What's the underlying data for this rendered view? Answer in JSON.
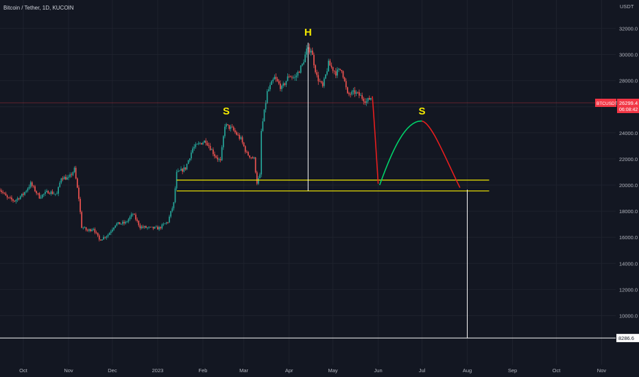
{
  "header": {
    "symbol_title": "Bitcoin / Tether, 1D, KUCOIN",
    "currency": "USDT"
  },
  "chart_data": {
    "type": "candlestick",
    "title": "Bitcoin / Tether, 1D, KUCOIN",
    "ylabel": "USDT",
    "ylim": [
      7200,
      33800
    ],
    "y_scale": "linear",
    "grid": true,
    "x_ticks": [
      {
        "label": "Oct",
        "date": "2022-10-01"
      },
      {
        "label": "Nov",
        "date": "2022-11-01"
      },
      {
        "label": "Dec",
        "date": "2022-12-01"
      },
      {
        "label": "2023",
        "date": "2023-01-01"
      },
      {
        "label": "Feb",
        "date": "2023-02-01"
      },
      {
        "label": "Mar",
        "date": "2023-03-01"
      },
      {
        "label": "Apr",
        "date": "2023-04-01"
      },
      {
        "label": "May",
        "date": "2023-05-01"
      },
      {
        "label": "Jun",
        "date": "2023-06-01"
      },
      {
        "label": "Jul",
        "date": "2023-07-01"
      },
      {
        "label": "Aug",
        "date": "2023-08-01"
      },
      {
        "label": "Sep",
        "date": "2023-09-01"
      },
      {
        "label": "Oct",
        "date": "2023-10-01"
      },
      {
        "label": "Nov",
        "date": "2023-11-01"
      }
    ],
    "y_ticks": [
      "10000.0",
      "12000.0",
      "14000.0",
      "16000.0",
      "18000.0",
      "20000.0",
      "22000.0",
      "24000.0",
      "26000.0",
      "28000.0",
      "30000.0",
      "32000.0"
    ],
    "price_path": [
      [
        "2022-09-14",
        19800
      ],
      [
        "2022-09-20",
        19000
      ],
      [
        "2022-09-25",
        18800
      ],
      [
        "2022-10-01",
        19300
      ],
      [
        "2022-10-06",
        20100
      ],
      [
        "2022-10-12",
        19100
      ],
      [
        "2022-10-18",
        19500
      ],
      [
        "2022-10-24",
        19300
      ],
      [
        "2022-10-27",
        20600
      ],
      [
        "2022-11-01",
        20500
      ],
      [
        "2022-11-05",
        21200
      ],
      [
        "2022-11-08",
        19000
      ],
      [
        "2022-11-10",
        16800
      ],
      [
        "2022-11-14",
        16500
      ],
      [
        "2022-11-18",
        16700
      ],
      [
        "2022-11-22",
        15800
      ],
      [
        "2022-11-28",
        16200
      ],
      [
        "2022-12-03",
        17000
      ],
      [
        "2022-12-10",
        17100
      ],
      [
        "2022-12-15",
        17800
      ],
      [
        "2022-12-20",
        16800
      ],
      [
        "2022-12-27",
        16700
      ],
      [
        "2023-01-02",
        16700
      ],
      [
        "2023-01-08",
        17200
      ],
      [
        "2023-01-12",
        18600
      ],
      [
        "2023-01-14",
        20900
      ],
      [
        "2023-01-20",
        21300
      ],
      [
        "2023-01-25",
        22800
      ],
      [
        "2023-01-30",
        23200
      ],
      [
        "2023-02-03",
        23400
      ],
      [
        "2023-02-09",
        22300
      ],
      [
        "2023-02-13",
        21800
      ],
      [
        "2023-02-16",
        24600
      ],
      [
        "2023-02-21",
        24300
      ],
      [
        "2023-02-27",
        23500
      ],
      [
        "2023-03-03",
        22400
      ],
      [
        "2023-03-08",
        22000
      ],
      [
        "2023-03-10",
        20200
      ],
      [
        "2023-03-12",
        20700
      ],
      [
        "2023-03-13",
        24100
      ],
      [
        "2023-03-17",
        27100
      ],
      [
        "2023-03-22",
        28200
      ],
      [
        "2023-03-27",
        27400
      ],
      [
        "2023-04-01",
        28400
      ],
      [
        "2023-04-05",
        28200
      ],
      [
        "2023-04-10",
        29200
      ],
      [
        "2023-04-13",
        30300
      ],
      [
        "2023-04-16",
        30400
      ],
      [
        "2023-04-20",
        28300
      ],
      [
        "2023-04-24",
        27500
      ],
      [
        "2023-04-28",
        29300
      ],
      [
        "2023-05-03",
        28600
      ],
      [
        "2023-05-07",
        28900
      ],
      [
        "2023-05-11",
        26900
      ],
      [
        "2023-05-16",
        27100
      ],
      [
        "2023-05-20",
        26800
      ],
      [
        "2023-05-24",
        26400
      ],
      [
        "2023-05-27",
        26700
      ]
    ],
    "projection": [
      {
        "segment": "decline",
        "color": "#e91e1e",
        "points": [
          [
            "2023-05-28",
            26800
          ],
          [
            "2023-06-01",
            20100
          ]
        ]
      },
      {
        "segment": "right-shoulder rise",
        "color": "#00d26a",
        "points": [
          [
            "2023-06-02",
            20000
          ],
          [
            "2023-07-01",
            24900
          ]
        ]
      },
      {
        "segment": "final decline",
        "color": "#e91e1e",
        "points": [
          [
            "2023-07-01",
            24900
          ],
          [
            "2023-07-27",
            19800
          ]
        ]
      }
    ],
    "annotations": [
      {
        "text": "S",
        "date": "2023-02-17",
        "price": 25400,
        "color": "#f5eb00"
      },
      {
        "text": "H",
        "date": "2023-04-14",
        "price": 31450,
        "color": "#f5eb00"
      },
      {
        "text": "S",
        "date": "2023-07-01",
        "price": 25400,
        "color": "#f5eb00"
      }
    ],
    "neckline_upper": {
      "price": 20380,
      "from": "2023-01-14",
      "to": "2023-08-16",
      "color": "#f5eb00"
    },
    "neckline_lower": {
      "price": 19550,
      "from": "2023-01-14",
      "to": "2023-08-16",
      "color": "#f5eb00"
    },
    "head_height_line": {
      "date": "2023-04-14",
      "from_price": 19550,
      "to_price": 30900
    },
    "target_drop_line": {
      "date": "2023-08-01",
      "from_price": 19650,
      "to_price": 8286.6
    },
    "target_hline": {
      "price": 8286.6,
      "label": "8286.6"
    },
    "current_price_line": {
      "price": 26299.4,
      "color": "#f23645"
    },
    "price_badge": {
      "symbol": "BTCUSDT",
      "price": "26299.4",
      "countdown": "06:08:42",
      "color": "#f23645"
    },
    "colors": {
      "background": "#131722",
      "grid": "#1e222d",
      "up_candle": "#26a69a",
      "down_candle": "#ef5350",
      "axis_text": "#b2b5be"
    }
  }
}
